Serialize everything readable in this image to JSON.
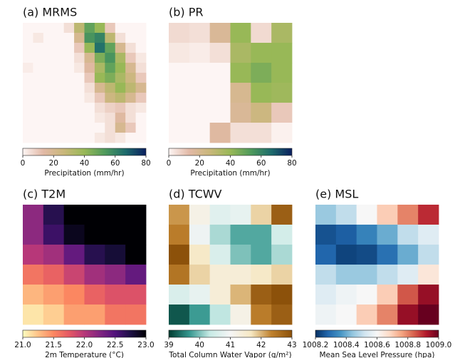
{
  "chart_data": [
    {
      "type": "heatmap",
      "title": "(a) MRMS",
      "colorbar_label": "Precipitation (mm/hr)",
      "vlim": [
        0,
        80
      ],
      "ticks": [
        0,
        20,
        40,
        60,
        80
      ],
      "colors": [
        "#fdf5f4",
        "#e2b9a6",
        "#c9b77a",
        "#98b857",
        "#4f9a5c",
        "#1d6b6c",
        "#0a1f5f"
      ],
      "values": [
        [
          0,
          0,
          0,
          0,
          5,
          30,
          50,
          40,
          10,
          0,
          0,
          0
        ],
        [
          0,
          3,
          0,
          0,
          0,
          20,
          55,
          60,
          30,
          5,
          0,
          0
        ],
        [
          0,
          0,
          0,
          0,
          0,
          10,
          40,
          65,
          50,
          20,
          5,
          0
        ],
        [
          0,
          0,
          0,
          0,
          0,
          5,
          20,
          45,
          55,
          35,
          10,
          3
        ],
        [
          2,
          0,
          0,
          0,
          0,
          3,
          15,
          35,
          50,
          40,
          20,
          5
        ],
        [
          0,
          0,
          0,
          0,
          0,
          0,
          10,
          40,
          45,
          35,
          25,
          10
        ],
        [
          0,
          0,
          0,
          0,
          0,
          0,
          5,
          20,
          30,
          40,
          30,
          20
        ],
        [
          0,
          0,
          0,
          0,
          0,
          0,
          3,
          10,
          25,
          30,
          20,
          10
        ],
        [
          0,
          0,
          0,
          0,
          0,
          0,
          0,
          5,
          8,
          10,
          5,
          3
        ],
        [
          0,
          0,
          0,
          0,
          0,
          0,
          0,
          3,
          5,
          15,
          5,
          0
        ],
        [
          0,
          0,
          0,
          0,
          0,
          0,
          0,
          0,
          5,
          20,
          10,
          0
        ],
        [
          0,
          0,
          0,
          0,
          0,
          0,
          0,
          3,
          5,
          3,
          0,
          0
        ]
      ]
    },
    {
      "type": "heatmap",
      "title": "(b) PR",
      "colorbar_label": "Precipitation (mm/hr)",
      "vlim": [
        0,
        80
      ],
      "ticks": [
        0,
        20,
        40,
        60,
        80
      ],
      "colors": [
        "#fdf5f4",
        "#e2b9a6",
        "#c9b77a",
        "#98b857",
        "#4f9a5c",
        "#1d6b6c",
        "#0a1f5f"
      ],
      "values": [
        [
          6,
          5,
          18,
          40,
          6,
          35
        ],
        [
          3,
          2,
          5,
          35,
          40,
          40
        ],
        [
          0,
          0,
          0,
          40,
          45,
          40
        ],
        [
          0,
          0,
          0,
          20,
          40,
          38
        ],
        [
          0,
          0,
          0,
          18,
          25,
          10
        ],
        [
          0,
          0,
          15,
          5,
          5,
          1
        ]
      ]
    },
    {
      "type": "heatmap",
      "title": "(c) T2M",
      "colorbar_label": "2m Temperature (°C)",
      "vlim": [
        21,
        23
      ],
      "ticks": [
        {
          "value": 21,
          "label": "21.0"
        },
        21.5,
        {
          "value": 22,
          "label": "22.0"
        },
        22.5,
        {
          "value": 23,
          "label": "23.0"
        }
      ],
      "colors": [
        "#fcfdbf",
        "#fec287",
        "#fb8761",
        "#e55964",
        "#b73779",
        "#812581",
        "#51127c",
        "#1c1044",
        "#000004"
      ],
      "values": [
        [
          22.2,
          22.7,
          23.0,
          23.0,
          23.0,
          23.0
        ],
        [
          22.2,
          22.6,
          22.9,
          23.0,
          23.0,
          23.0
        ],
        [
          22.0,
          22.1,
          22.4,
          22.7,
          22.8,
          23.0
        ],
        [
          21.6,
          21.7,
          21.9,
          22.1,
          22.2,
          22.4
        ],
        [
          21.3,
          21.4,
          21.5,
          21.7,
          21.8,
          21.8
        ],
        [
          21.1,
          21.2,
          21.4,
          21.4,
          21.6,
          21.6
        ]
      ]
    },
    {
      "type": "heatmap",
      "title": "(d) TCWV",
      "colorbar_label": "Total Column Water Vapor (g/m²)",
      "vlim": [
        39,
        43
      ],
      "ticks": [
        39,
        40,
        41,
        42,
        43
      ],
      "colors": [
        "#003c30",
        "#35978f",
        "#c7eae5",
        "#f5f5f5",
        "#f6e8c3",
        "#bf812d",
        "#8c510a"
      ],
      "values": [
        [
          42.2,
          41.2,
          40.7,
          40.8,
          41.8,
          42.8
        ],
        [
          42.4,
          40.9,
          40.2,
          39.8,
          39.8,
          40.5
        ],
        [
          43.0,
          41.6,
          40.6,
          40.0,
          39.8,
          40.2
        ],
        [
          42.5,
          41.8,
          41.4,
          41.4,
          41.6,
          41.8
        ],
        [
          40.6,
          40.8,
          41.4,
          42.0,
          42.8,
          43.0
        ],
        [
          39.2,
          39.7,
          40.3,
          41.2,
          42.4,
          42.8
        ]
      ]
    },
    {
      "type": "heatmap",
      "title": "(e) MSL",
      "colorbar_label": "Mean Sea Level Pressure (hpa)",
      "vlim": [
        1008.2,
        1009.0
      ],
      "ticks": [
        1008.2,
        1008.4,
        1008.6,
        1008.8,
        {
          "value": 1009.0,
          "label": "1009.0"
        }
      ],
      "colors": [
        "#053061",
        "#2166ac",
        "#4393c3",
        "#92c5de",
        "#d1e5f0",
        "#f7f7f7",
        "#fddbc7",
        "#f4a582",
        "#d6604d",
        "#b2182b",
        "#67001f"
      ],
      "values": [
        [
          1008.45,
          1008.5,
          1008.6,
          1008.7,
          1008.8,
          1008.9
        ],
        [
          1008.25,
          1008.27,
          1008.33,
          1008.4,
          1008.5,
          1008.55
        ],
        [
          1008.28,
          1008.23,
          1008.24,
          1008.3,
          1008.4,
          1008.5
        ],
        [
          1008.5,
          1008.45,
          1008.45,
          1008.5,
          1008.55,
          1008.65
        ],
        [
          1008.55,
          1008.58,
          1008.6,
          1008.7,
          1008.85,
          1008.95
        ],
        [
          1008.58,
          1008.6,
          1008.7,
          1008.8,
          1008.95,
          1009.0
        ]
      ]
    }
  ]
}
